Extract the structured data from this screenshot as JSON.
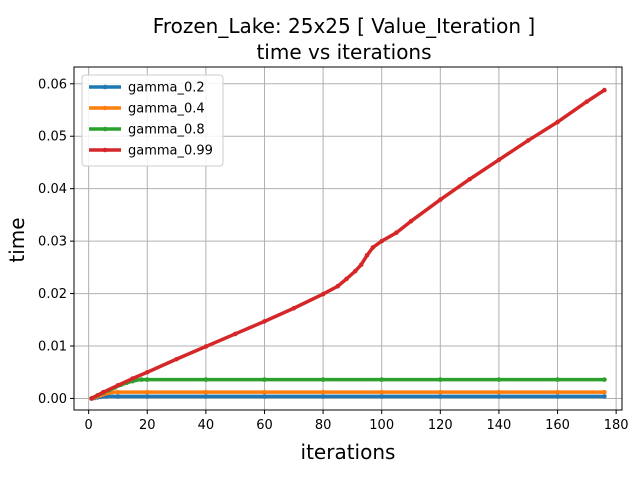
{
  "chart_data": {
    "type": "line",
    "title": "Frozen_Lake: 25x25 [ Value_Iteration ]",
    "subtitle": "time vs iterations",
    "xlabel": "iterations",
    "ylabel": "time",
    "xlim": [
      -5,
      182
    ],
    "ylim": [
      -0.0022,
      0.0632
    ],
    "xticks": [
      0,
      20,
      40,
      60,
      80,
      100,
      120,
      140,
      160,
      180
    ],
    "yticks": [
      0.0,
      0.01,
      0.02,
      0.03,
      0.04,
      0.05,
      0.06
    ],
    "xtick_labels": [
      "0",
      "20",
      "40",
      "60",
      "80",
      "100",
      "120",
      "140",
      "160",
      "180"
    ],
    "ytick_labels": [
      "0.00",
      "0.01",
      "0.02",
      "0.03",
      "0.04",
      "0.05",
      "0.06"
    ],
    "grid": true,
    "legend_position": "upper-left",
    "series": [
      {
        "name": "gamma_0.2",
        "color": "#1f77b4",
        "x": [
          1,
          2,
          3,
          4,
          5,
          6,
          10,
          20,
          40,
          60,
          80,
          100,
          120,
          140,
          160,
          176
        ],
        "y": [
          0.0,
          0.0001,
          0.0002,
          0.0003,
          0.0004,
          0.0004,
          0.0004,
          0.0004,
          0.0004,
          0.0004,
          0.0004,
          0.0004,
          0.0004,
          0.0004,
          0.0004,
          0.0004
        ]
      },
      {
        "name": "gamma_0.4",
        "color": "#ff7f0e",
        "x": [
          1,
          2,
          3,
          4,
          5,
          6,
          7,
          8,
          10,
          20,
          40,
          60,
          80,
          100,
          120,
          140,
          160,
          176
        ],
        "y": [
          0.0,
          0.0002,
          0.0004,
          0.0006,
          0.0008,
          0.001,
          0.0011,
          0.0012,
          0.0012,
          0.0012,
          0.0012,
          0.0012,
          0.0012,
          0.0012,
          0.0012,
          0.0012,
          0.0012,
          0.0012
        ]
      },
      {
        "name": "gamma_0.8",
        "color": "#2ca02c",
        "x": [
          1,
          3,
          5,
          7,
          9,
          11,
          13,
          15,
          16,
          18,
          20,
          40,
          60,
          80,
          100,
          120,
          140,
          160,
          176
        ],
        "y": [
          0.0,
          0.0006,
          0.0011,
          0.0016,
          0.0021,
          0.0026,
          0.003,
          0.0033,
          0.0035,
          0.0036,
          0.0036,
          0.0036,
          0.0036,
          0.0036,
          0.0036,
          0.0036,
          0.0036,
          0.0036,
          0.0036
        ]
      },
      {
        "name": "gamma_0.99",
        "color": "#d62728",
        "x": [
          1,
          5,
          10,
          15,
          20,
          30,
          40,
          50,
          60,
          70,
          80,
          85,
          88,
          91,
          93,
          95,
          97,
          100,
          105,
          110,
          120,
          130,
          140,
          150,
          160,
          170,
          176
        ],
        "y": [
          0.0,
          0.0012,
          0.0025,
          0.0038,
          0.005,
          0.0075,
          0.0099,
          0.0123,
          0.0147,
          0.0172,
          0.0199,
          0.0214,
          0.0228,
          0.0243,
          0.0255,
          0.0273,
          0.0288,
          0.03,
          0.0316,
          0.0338,
          0.0379,
          0.0418,
          0.0455,
          0.0492,
          0.0527,
          0.0566,
          0.0588
        ]
      }
    ]
  }
}
